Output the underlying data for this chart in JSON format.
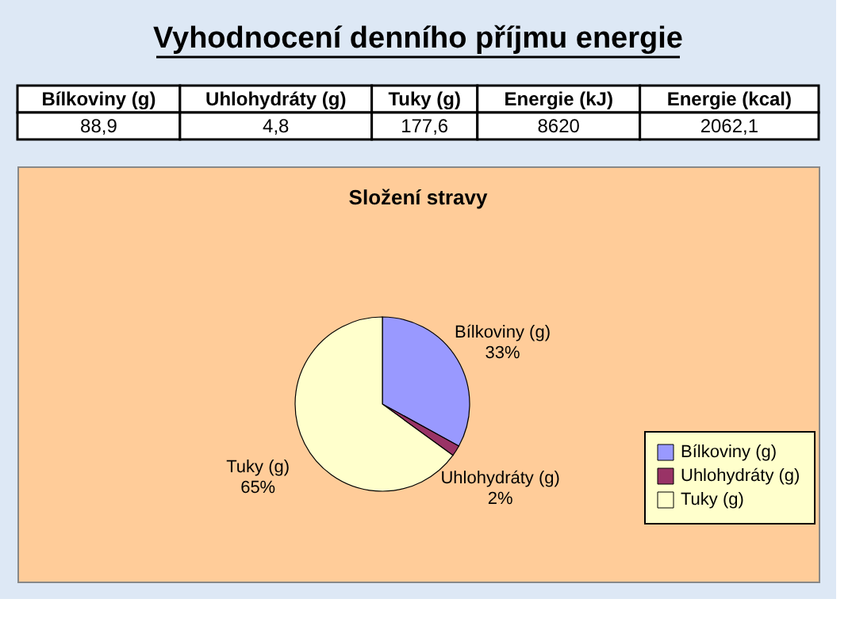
{
  "chart_data": [
    {
      "type": "other",
      "title": "Vyhodnocení denního příjmu energie",
      "annotations": [
        "Bílkoviny (g)",
        "Uhlohydráty (g)",
        "Tuky (g)",
        "Energie (kJ)",
        "Energie (kcal)",
        "88,9",
        "4,8",
        "177,6",
        "8620",
        "2062,1"
      ]
    },
    {
      "type": "pie",
      "title": "Složení stravy",
      "categories": [
        "Bílkoviny (g)",
        "Uhlohydráty (g)",
        "Tuky (g)"
      ],
      "values": [
        33,
        2,
        65
      ],
      "value_labels": [
        "33%",
        "2%",
        "65%"
      ],
      "colors": [
        "#9999ff",
        "#993366",
        "#ffffcc"
      ],
      "legend": "bottom right"
    }
  ]
}
